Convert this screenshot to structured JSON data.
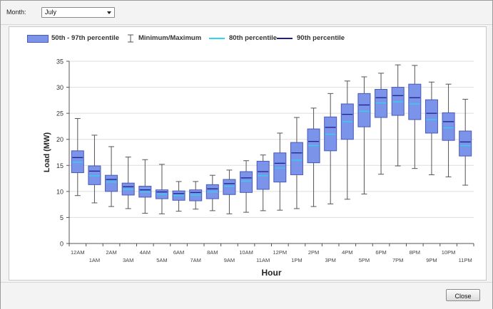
{
  "toolbar": {
    "month_label": "Month:",
    "month_value": "July"
  },
  "footer": {
    "close_label": "Close"
  },
  "colors": {
    "box_fill": "#7b93e8",
    "box_edge": "#4a5ab5",
    "p80": "#2fd4ef",
    "p90": "#1e1f8c",
    "whisker": "#555555",
    "grid": "#dddddd"
  },
  "chart_data": {
    "type": "boxplot",
    "legend_position": "top-left",
    "legend": [
      "50th - 97th percentile",
      "Minimum/Maximum",
      "80th percentile",
      "90th percentile"
    ],
    "xlabel": "Hour",
    "ylabel": "Load (MW)",
    "ylim": [
      0,
      35
    ],
    "yticks": [
      0,
      5,
      10,
      15,
      20,
      25,
      30,
      35
    ],
    "grid": true,
    "categories": [
      "12AM",
      "1AM",
      "2AM",
      "3AM",
      "4AM",
      "5AM",
      "6AM",
      "7AM",
      "8AM",
      "9AM",
      "10AM",
      "11AM",
      "12PM",
      "1PM",
      "2PM",
      "3PM",
      "4PM",
      "5PM",
      "6PM",
      "7PM",
      "8PM",
      "9PM",
      "10PM",
      "11PM"
    ],
    "min": [
      9.2,
      7.8,
      7.1,
      6.7,
      5.8,
      5.7,
      6.2,
      6.6,
      6.3,
      5.7,
      6.0,
      6.3,
      6.4,
      6.7,
      7.1,
      7.6,
      8.5,
      9.5,
      13.3,
      14.9,
      14.4,
      13.2,
      12.8,
      11.2
    ],
    "p50": [
      13.6,
      11.3,
      10.0,
      9.3,
      8.9,
      8.6,
      8.3,
      8.2,
      8.6,
      9.4,
      9.8,
      10.4,
      11.8,
      13.2,
      15.5,
      17.8,
      20.0,
      22.4,
      24.2,
      24.6,
      23.8,
      21.2,
      19.8,
      16.8
    ],
    "p80": [
      15.6,
      13.0,
      11.8,
      10.4,
      9.9,
      9.5,
      9.2,
      9.3,
      9.9,
      11.0,
      12.0,
      13.0,
      14.5,
      16.0,
      18.8,
      21.0,
      23.4,
      25.4,
      27.0,
      27.2,
      26.8,
      23.8,
      22.2,
      18.8
    ],
    "p90": [
      16.5,
      13.9,
      12.3,
      10.9,
      10.3,
      9.9,
      9.6,
      9.8,
      10.5,
      11.5,
      12.6,
      13.8,
      15.4,
      17.4,
      19.6,
      22.3,
      24.8,
      26.6,
      28.0,
      28.4,
      28.0,
      25.0,
      23.4,
      19.5
    ],
    "p97": [
      17.8,
      14.9,
      13.1,
      11.6,
      11.0,
      10.3,
      10.1,
      10.3,
      11.3,
      12.3,
      13.8,
      15.8,
      17.4,
      19.4,
      22.0,
      24.3,
      26.8,
      28.8,
      29.6,
      30.0,
      30.6,
      27.6,
      25.1,
      21.6
    ],
    "max": [
      24.0,
      20.8,
      18.6,
      16.6,
      16.1,
      15.2,
      11.9,
      11.9,
      13.1,
      14.1,
      15.9,
      17.0,
      21.2,
      24.2,
      26.0,
      28.8,
      31.2,
      32.0,
      32.7,
      34.3,
      34.2,
      31.0,
      30.6,
      27.7
    ]
  }
}
